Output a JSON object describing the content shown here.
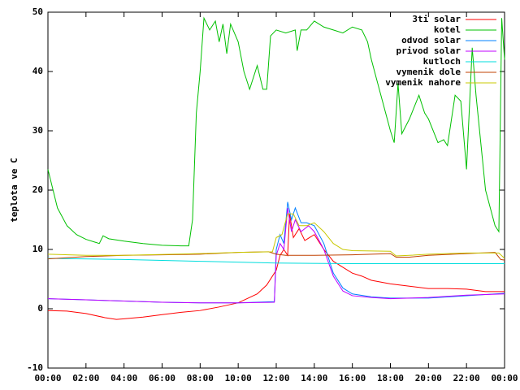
{
  "chart_data": {
    "type": "line",
    "ylabel": "teplota ve C",
    "xlim": [
      0,
      24
    ],
    "xticks": [
      {
        "value": 0,
        "label": "00:00"
      },
      {
        "value": 2,
        "label": "02:00"
      },
      {
        "value": 4,
        "label": "04:00"
      },
      {
        "value": 6,
        "label": "06:00"
      },
      {
        "value": 8,
        "label": "08:00"
      },
      {
        "value": 10,
        "label": "10:00"
      },
      {
        "value": 12,
        "label": "12:00"
      },
      {
        "value": 14,
        "label": "14:00"
      },
      {
        "value": 16,
        "label": "16:00"
      },
      {
        "value": 18,
        "label": "18:00"
      },
      {
        "value": 20,
        "label": "20:00"
      },
      {
        "value": 22,
        "label": "22:00"
      },
      {
        "value": 24,
        "label": "00:00"
      }
    ],
    "ylim": [
      -10,
      50
    ],
    "yticks": [
      -10,
      0,
      10,
      20,
      30,
      40,
      50
    ],
    "legend": "top right",
    "series": [
      {
        "name": "3ti solar",
        "color": "#ff0000",
        "x": [
          0,
          1,
          2,
          3,
          3.6,
          4,
          5,
          6,
          7,
          8,
          9,
          10,
          11,
          11.5,
          12,
          12.2,
          12.4,
          12.6,
          12.7,
          12.9,
          13.2,
          13.5,
          14,
          14.5,
          15,
          15.5,
          16,
          16.5,
          17,
          18,
          19,
          20,
          21,
          22,
          23,
          24
        ],
        "values": [
          -0.3,
          -0.4,
          -0.8,
          -1.5,
          -1.8,
          -1.7,
          -1.4,
          -1,
          -0.6,
          -0.3,
          0.3,
          1,
          2.5,
          4,
          6.5,
          9,
          10,
          9,
          16,
          12,
          13.5,
          11.5,
          12.5,
          10,
          8,
          7,
          6,
          5.5,
          4.8,
          4.2,
          3.8,
          3.4,
          3.4,
          3.3,
          2.9,
          2.9
        ]
      },
      {
        "name": "kotel",
        "color": "#00c000",
        "x": [
          0,
          0.5,
          1,
          1.5,
          2,
          2.5,
          2.7,
          2.9,
          3.2,
          4,
          5,
          6,
          7,
          7.4,
          7.6,
          7.8,
          8,
          8.2,
          8.5,
          8.8,
          9,
          9.2,
          9.4,
          9.6,
          10,
          10.3,
          10.6,
          11,
          11.3,
          11.5,
          11.7,
          12,
          12.5,
          13,
          13.1,
          13.3,
          13.6,
          14,
          14.5,
          15,
          15.5,
          16,
          16.5,
          16.8,
          17,
          17.5,
          18,
          18.2,
          18.4,
          18.6,
          19,
          19.5,
          19.8,
          20,
          20.5,
          20.8,
          21,
          21.4,
          21.7,
          22,
          22.3,
          22.5,
          23,
          23.5,
          23.7,
          23.85,
          24
        ],
        "values": [
          23.5,
          17,
          14,
          12.5,
          11.7,
          11.2,
          11,
          12.3,
          11.8,
          11.4,
          11,
          10.7,
          10.6,
          10.6,
          15,
          33,
          40,
          49,
          47,
          48.5,
          45,
          48,
          43,
          48,
          45,
          40,
          37,
          41,
          37,
          37,
          46,
          47,
          46.5,
          47,
          43.5,
          47,
          47,
          48.5,
          47.5,
          47,
          46.5,
          47.5,
          47,
          45,
          42,
          36,
          30,
          28,
          38,
          29.5,
          32,
          36,
          33,
          32,
          28,
          28.5,
          27.5,
          36,
          35,
          23.5,
          44,
          36,
          20,
          14,
          13,
          49,
          42
        ]
      },
      {
        "name": "odvod solar",
        "color": "#0080ff",
        "x": [
          0,
          2,
          4,
          6,
          8,
          10,
          11.9,
          12,
          12.2,
          12.4,
          12.6,
          12.8,
          13,
          13.3,
          13.6,
          14,
          14.5,
          15,
          15.5,
          16,
          17,
          18,
          20,
          22,
          24
        ],
        "values": [
          1.7,
          1.5,
          1.3,
          1.1,
          1,
          1,
          1.2,
          10,
          12.5,
          11,
          18,
          15,
          17,
          14.5,
          14.5,
          14,
          11,
          6,
          3.5,
          2.5,
          2,
          1.8,
          1.8,
          2.2,
          2.6
        ]
      },
      {
        "name": "privod solar",
        "color": "#c000ff",
        "x": [
          0,
          2,
          4,
          6,
          8,
          10,
          11.9,
          12,
          12.2,
          12.4,
          12.6,
          12.8,
          13,
          13.3,
          13.7,
          14,
          14.5,
          15,
          15.5,
          16,
          17,
          18,
          20,
          22,
          24
        ],
        "values": [
          1.7,
          1.5,
          1.3,
          1.1,
          1,
          1,
          1.1,
          9,
          11,
          10,
          17,
          13,
          15,
          13,
          14,
          13,
          10,
          5.5,
          3,
          2.2,
          1.9,
          1.7,
          1.9,
          2.3,
          2.5
        ]
      },
      {
        "name": "kutloch",
        "color": "#00dddd",
        "x": [
          0,
          4,
          8,
          12,
          16,
          20,
          24
        ],
        "values": [
          8.5,
          8.3,
          8,
          7.7,
          7.6,
          7.6,
          7.6
        ]
      },
      {
        "name": "vymenik dole",
        "color": "#c04000",
        "x": [
          0,
          2,
          4,
          6,
          8,
          10,
          11.6,
          12,
          12.5,
          14,
          16,
          18,
          18.3,
          19,
          20,
          22,
          23.5,
          23.8,
          24
        ],
        "values": [
          8.4,
          8.8,
          9,
          9.1,
          9.2,
          9.5,
          9.6,
          9.2,
          9,
          9,
          9.1,
          9.3,
          8.7,
          8.7,
          9,
          9.3,
          9.5,
          8.3,
          8.2
        ]
      },
      {
        "name": "vymenik nahore",
        "color": "#c8c800",
        "x": [
          0,
          2,
          4,
          8,
          10,
          11.8,
          12,
          12.3,
          12.6,
          12.9,
          13.2,
          13.6,
          14,
          14.5,
          15,
          15.5,
          16,
          18,
          18.3,
          19,
          20,
          22,
          23.7,
          24
        ],
        "values": [
          9.2,
          9,
          9,
          9.3,
          9.5,
          9.6,
          12,
          12.5,
          16,
          16,
          14,
          14,
          14.5,
          13,
          11,
          10,
          9.8,
          9.7,
          8.9,
          9,
          9.2,
          9.4,
          9.4,
          8.5
        ]
      }
    ]
  }
}
